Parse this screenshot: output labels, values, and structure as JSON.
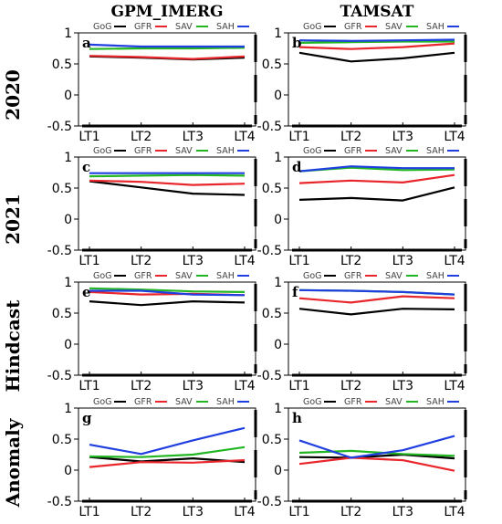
{
  "colors": {
    "GoG": "#000000",
    "GFR": "#e8262b",
    "SAV": "#22b622",
    "SAH": "#1f3fe0"
  },
  "column_titles": [
    "GPM_IMERG",
    "TAMSAT"
  ],
  "row_labels": [
    "2020",
    "2021",
    "Hindcast",
    "Anomaly"
  ],
  "chart_data": [
    {
      "type": "line",
      "panel": "a",
      "column": "GPM_IMERG",
      "row": "2020",
      "categories": [
        "LT1",
        "LT2",
        "LT3",
        "LT4"
      ],
      "ylim": [
        -0.5,
        1
      ],
      "yticks": [
        "-0.5",
        "0",
        "0.5",
        "1"
      ],
      "series": [
        {
          "name": "GoG",
          "values": [
            0.62,
            0.6,
            0.57,
            0.6
          ]
        },
        {
          "name": "GFR",
          "values": [
            0.63,
            0.61,
            0.58,
            0.62
          ]
        },
        {
          "name": "SAV",
          "values": [
            0.74,
            0.75,
            0.75,
            0.76
          ]
        },
        {
          "name": "SAH",
          "values": [
            0.81,
            0.78,
            0.78,
            0.78
          ]
        }
      ]
    },
    {
      "type": "line",
      "panel": "b",
      "column": "TAMSAT",
      "row": "2020",
      "categories": [
        "LT1",
        "LT2",
        "LT3",
        "LT4"
      ],
      "ylim": [
        -0.5,
        1
      ],
      "yticks": [
        "-0.5",
        "0",
        "0.5",
        "1"
      ],
      "series": [
        {
          "name": "GoG",
          "values": [
            0.68,
            0.54,
            0.59,
            0.68
          ]
        },
        {
          "name": "GFR",
          "values": [
            0.77,
            0.74,
            0.77,
            0.83
          ]
        },
        {
          "name": "SAV",
          "values": [
            0.84,
            0.85,
            0.86,
            0.86
          ]
        },
        {
          "name": "SAH",
          "values": [
            0.88,
            0.87,
            0.88,
            0.89
          ]
        }
      ]
    },
    {
      "type": "line",
      "panel": "c",
      "column": "GPM_IMERG",
      "row": "2021",
      "categories": [
        "LT1",
        "LT2",
        "LT3",
        "LT4"
      ],
      "ylim": [
        -0.5,
        1
      ],
      "yticks": [
        "-0.5",
        "0",
        "0.5",
        "1"
      ],
      "series": [
        {
          "name": "GoG",
          "values": [
            0.61,
            0.51,
            0.41,
            0.39
          ]
        },
        {
          "name": "GFR",
          "values": [
            0.62,
            0.6,
            0.55,
            0.57
          ]
        },
        {
          "name": "SAV",
          "values": [
            0.69,
            0.7,
            0.71,
            0.7
          ]
        },
        {
          "name": "SAH",
          "values": [
            0.74,
            0.74,
            0.74,
            0.74
          ]
        }
      ]
    },
    {
      "type": "line",
      "panel": "d",
      "column": "TAMSAT",
      "row": "2021",
      "categories": [
        "LT1",
        "LT2",
        "LT3",
        "LT4"
      ],
      "ylim": [
        -0.5,
        1
      ],
      "yticks": [
        "-0.5",
        "0",
        "0.5",
        "1"
      ],
      "series": [
        {
          "name": "GoG",
          "values": [
            0.31,
            0.34,
            0.3,
            0.51
          ]
        },
        {
          "name": "GFR",
          "values": [
            0.58,
            0.62,
            0.59,
            0.71
          ]
        },
        {
          "name": "SAV",
          "values": [
            0.77,
            0.83,
            0.79,
            0.8
          ]
        },
        {
          "name": "SAH",
          "values": [
            0.77,
            0.85,
            0.82,
            0.82
          ]
        }
      ]
    },
    {
      "type": "line",
      "panel": "e",
      "column": "GPM_IMERG",
      "row": "Hindcast",
      "categories": [
        "LT1",
        "LT2",
        "LT3",
        "LT4"
      ],
      "ylim": [
        -0.5,
        1
      ],
      "yticks": [
        "-0.5",
        "0",
        "0.5",
        "1"
      ],
      "series": [
        {
          "name": "GoG",
          "values": [
            0.69,
            0.63,
            0.69,
            0.67
          ]
        },
        {
          "name": "GFR",
          "values": [
            0.84,
            0.8,
            0.81,
            0.79
          ]
        },
        {
          "name": "SAV",
          "values": [
            0.9,
            0.88,
            0.85,
            0.84
          ]
        },
        {
          "name": "SAH",
          "values": [
            0.86,
            0.86,
            0.8,
            0.79
          ]
        }
      ]
    },
    {
      "type": "line",
      "panel": "f",
      "column": "TAMSAT",
      "row": "Hindcast",
      "categories": [
        "LT1",
        "LT2",
        "LT3",
        "LT4"
      ],
      "ylim": [
        -0.5,
        1
      ],
      "yticks": [
        "-0.5",
        "0",
        "0.5",
        "1"
      ],
      "series": [
        {
          "name": "GoG",
          "values": [
            0.57,
            0.48,
            0.57,
            0.56
          ]
        },
        {
          "name": "GFR",
          "values": [
            0.74,
            0.67,
            0.77,
            0.74
          ]
        },
        {
          "name": "SAV",
          "values": [
            0.87,
            0.86,
            0.84,
            0.8
          ]
        },
        {
          "name": "SAH",
          "values": [
            0.87,
            0.86,
            0.84,
            0.8
          ]
        }
      ]
    },
    {
      "type": "line",
      "panel": "g",
      "column": "GPM_IMERG",
      "row": "Anomaly",
      "categories": [
        "LT1",
        "LT2",
        "LT3",
        "LT4"
      ],
      "ylim": [
        -0.5,
        1
      ],
      "yticks": [
        "-0.5",
        "0",
        "0.5",
        "1"
      ],
      "series": [
        {
          "name": "GoG",
          "values": [
            0.21,
            0.14,
            0.19,
            0.13
          ]
        },
        {
          "name": "GFR",
          "values": [
            0.05,
            0.13,
            0.12,
            0.16
          ]
        },
        {
          "name": "SAV",
          "values": [
            0.22,
            0.21,
            0.25,
            0.37
          ]
        },
        {
          "name": "SAH",
          "values": [
            0.41,
            0.26,
            0.48,
            0.68
          ]
        }
      ]
    },
    {
      "type": "line",
      "panel": "h",
      "column": "TAMSAT",
      "row": "Anomaly",
      "categories": [
        "LT1",
        "LT2",
        "LT3",
        "LT4"
      ],
      "ylim": [
        -0.5,
        1
      ],
      "yticks": [
        "-0.5",
        "0",
        "0.5",
        "1"
      ],
      "series": [
        {
          "name": "GoG",
          "values": [
            0.21,
            0.2,
            0.25,
            0.19
          ]
        },
        {
          "name": "GFR",
          "values": [
            0.1,
            0.2,
            0.16,
            -0.01
          ]
        },
        {
          "name": "SAV",
          "values": [
            0.28,
            0.31,
            0.26,
            0.23
          ]
        },
        {
          "name": "SAH",
          "values": [
            0.48,
            0.2,
            0.32,
            0.55
          ]
        }
      ]
    }
  ]
}
